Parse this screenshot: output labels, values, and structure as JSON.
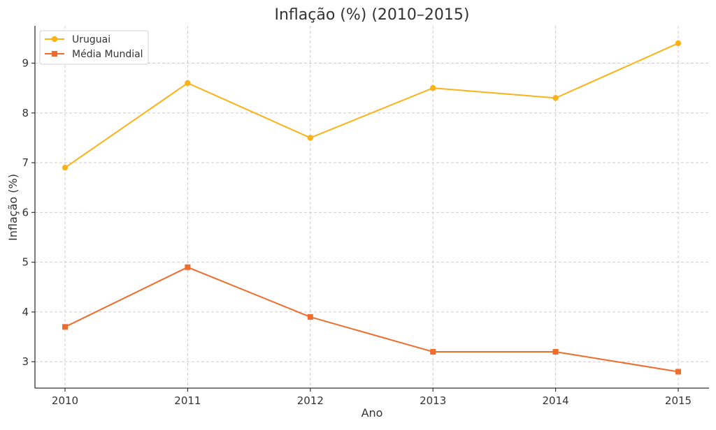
{
  "chart_data": {
    "type": "line",
    "title": "Inflação (%) (2010–2015)",
    "xlabel": "Ano",
    "ylabel": "Inflação (%)",
    "categories": [
      "2010",
      "2011",
      "2012",
      "2013",
      "2014",
      "2015"
    ],
    "ylim": [
      2.47,
      9.75
    ],
    "yticks": [
      "3",
      "4",
      "5",
      "6",
      "7",
      "8",
      "9"
    ],
    "grid": true,
    "legend_position": "top-left",
    "series": [
      {
        "name": "Uruguai",
        "values": [
          6.9,
          8.6,
          7.5,
          8.5,
          8.3,
          9.4
        ],
        "color": "#FBB217",
        "marker": "circle"
      },
      {
        "name": "Média Mundial",
        "values": [
          3.7,
          4.9,
          3.9,
          3.2,
          3.2,
          2.8
        ],
        "color": "#EF6C2A",
        "marker": "square"
      }
    ]
  }
}
